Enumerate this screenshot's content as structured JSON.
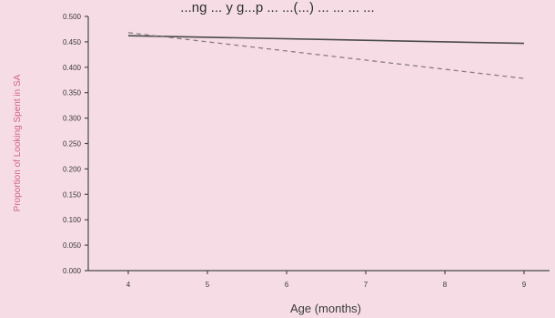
{
  "page": {
    "top_caption": "...ng ... y g...p ... ...(...) ... ... ... ..."
  },
  "colors": {
    "background": "#f6dde5",
    "axis": "#4a4a4a",
    "ylabel": "#d2628a"
  },
  "chart_data": {
    "type": "line",
    "title": "",
    "xlabel": "Age (months)",
    "ylabel": "Proportion of Looking Spent in SA",
    "x": [
      4,
      5,
      6,
      7,
      8,
      9
    ],
    "xtick_labels": [
      "4",
      "5",
      "6",
      "7",
      "8",
      "9"
    ],
    "ylim": [
      0,
      0.5
    ],
    "ytick_values": [
      0,
      0.05,
      0.1,
      0.15,
      0.2,
      0.25,
      0.3,
      0.35,
      0.4,
      0.45,
      0.5
    ],
    "ytick_labels": [
      "0.000",
      "0.050",
      "0.100",
      "0.150",
      "0.200",
      "0.250",
      "0.300",
      "0.350",
      "0.400",
      "0.450",
      "0.500"
    ],
    "grid": false,
    "legend": "none",
    "series": [
      {
        "style": "solid",
        "x": [
          4,
          9
        ],
        "values": [
          0.462,
          0.447
        ]
      },
      {
        "style": "dashed",
        "x": [
          4,
          9
        ],
        "values": [
          0.468,
          0.378
        ]
      }
    ]
  }
}
